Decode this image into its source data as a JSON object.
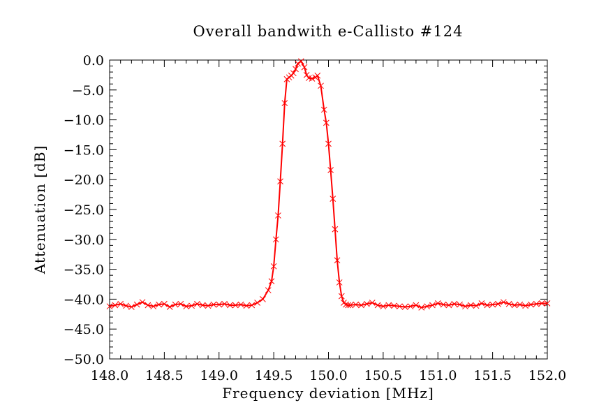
{
  "chart_data": {
    "type": "line",
    "title": "Overall bandwith e-Callisto #124",
    "xlabel": "Frequency deviation [MHz]",
    "ylabel": "Attenuation [dB]",
    "xlim": [
      148.0,
      152.0
    ],
    "ylim": [
      -50.0,
      0.0
    ],
    "xticks": [
      "148.0",
      "148.5",
      "149.0",
      "149.5",
      "150.0",
      "150.5",
      "151.0",
      "151.5",
      "152.0"
    ],
    "yticks": [
      "0.0",
      "−5.0",
      "−10.0",
      "−15.0",
      "−20.0",
      "−25.0",
      "−30.0",
      "−35.0",
      "−40.0",
      "−45.0",
      "−50.0"
    ],
    "xtick_values": [
      148.0,
      148.5,
      149.0,
      149.5,
      150.0,
      150.5,
      151.0,
      151.5,
      152.0
    ],
    "ytick_values": [
      0,
      -5,
      -10,
      -15,
      -20,
      -25,
      -30,
      -35,
      -40,
      -45,
      -50
    ],
    "grid": false,
    "series": [
      {
        "color": "#ff0000",
        "marker": "x",
        "x": [
          148.0,
          148.05,
          148.1,
          148.15,
          148.2,
          148.25,
          148.3,
          148.35,
          148.4,
          148.45,
          148.5,
          148.55,
          148.6,
          148.65,
          148.7,
          148.75,
          148.8,
          148.85,
          148.9,
          148.95,
          149.0,
          149.05,
          149.1,
          149.15,
          149.2,
          149.25,
          149.3,
          149.35,
          149.4,
          149.45,
          149.48,
          149.5,
          149.52,
          149.54,
          149.56,
          149.58,
          149.6,
          149.62,
          149.64,
          149.66,
          149.68,
          149.7,
          149.72,
          149.75,
          149.78,
          149.8,
          149.82,
          149.85,
          149.88,
          149.9,
          149.93,
          149.96,
          149.98,
          150.0,
          150.02,
          150.04,
          150.06,
          150.08,
          150.1,
          150.12,
          150.14,
          150.16,
          150.18,
          150.2,
          150.25,
          150.3,
          150.35,
          150.4,
          150.45,
          150.5,
          150.55,
          150.6,
          150.65,
          150.7,
          150.75,
          150.8,
          150.85,
          150.9,
          150.95,
          151.0,
          151.05,
          151.1,
          151.15,
          151.2,
          151.25,
          151.3,
          151.35,
          151.4,
          151.45,
          151.5,
          151.55,
          151.6,
          151.65,
          151.7,
          151.75,
          151.8,
          151.85,
          151.9,
          151.95,
          152.0
        ],
        "y": [
          -41.2,
          -41.0,
          -40.8,
          -41.1,
          -41.3,
          -40.9,
          -40.5,
          -41.0,
          -41.2,
          -40.9,
          -40.8,
          -41.3,
          -40.9,
          -40.8,
          -41.2,
          -41.1,
          -40.8,
          -41.0,
          -41.1,
          -40.9,
          -40.9,
          -40.8,
          -41.0,
          -41.0,
          -40.9,
          -41.1,
          -41.0,
          -40.6,
          -40.0,
          -38.5,
          -37.0,
          -34.5,
          -30.0,
          -26.0,
          -20.3,
          -14.0,
          -7.2,
          -3.2,
          -2.9,
          -2.6,
          -2.2,
          -1.5,
          -0.6,
          -0.2,
          -1.2,
          -2.5,
          -3.0,
          -3.1,
          -2.9,
          -2.6,
          -4.3,
          -8.3,
          -10.5,
          -14.0,
          -18.4,
          -23.2,
          -28.3,
          -33.5,
          -37.2,
          -39.5,
          -40.6,
          -40.9,
          -41.0,
          -41.0,
          -40.9,
          -41.0,
          -40.8,
          -40.6,
          -41.0,
          -41.2,
          -41.0,
          -41.1,
          -41.2,
          -41.3,
          -41.2,
          -41.0,
          -41.4,
          -41.2,
          -41.0,
          -40.7,
          -40.9,
          -41.0,
          -40.8,
          -40.9,
          -41.2,
          -41.0,
          -41.1,
          -40.7,
          -41.0,
          -40.9,
          -40.8,
          -40.5,
          -40.8,
          -41.0,
          -40.9,
          -41.1,
          -40.9,
          -40.8,
          -40.7,
          -40.7
        ]
      }
    ]
  }
}
